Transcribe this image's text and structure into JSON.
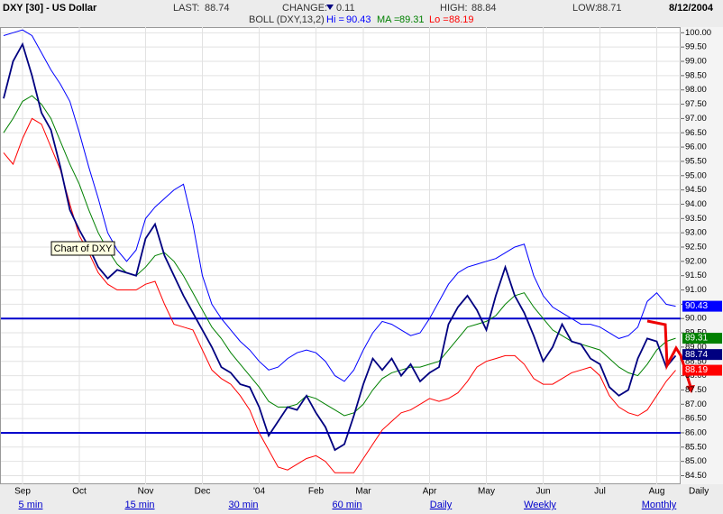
{
  "header": {
    "symbol": "DXY [30] - US Dollar",
    "last_label": "LAST:",
    "last": 88.74,
    "change_label": "CHANGE:",
    "change": 0.11,
    "high_label": "HIGH:",
    "high": 88.84,
    "low_label": "LOW:",
    "low": 88.71,
    "date": "8/12/2004",
    "boll_label": "BOLL (DXY,13,2)",
    "hi_label": "Hi =",
    "hi": 90.43,
    "ma_label": "MA =",
    "ma": 89.31,
    "lo_label": "Lo =",
    "lo": 88.19
  },
  "chart_data": {
    "type": "line",
    "categories": [
      null,
      null,
      "Sep",
      null,
      null,
      null,
      null,
      null,
      "Oct",
      null,
      null,
      null,
      null,
      null,
      null,
      "Nov",
      null,
      null,
      null,
      null,
      null,
      "Dec",
      null,
      null,
      null,
      null,
      null,
      "'04",
      null,
      null,
      null,
      null,
      null,
      "Feb",
      null,
      null,
      null,
      null,
      "Mar",
      null,
      null,
      null,
      null,
      null,
      null,
      "Apr",
      null,
      null,
      null,
      null,
      null,
      "May",
      null,
      null,
      null,
      null,
      null,
      "Jun",
      null,
      null,
      null,
      null,
      null,
      "Jul",
      null,
      null,
      null,
      null,
      null,
      "Aug",
      null,
      null
    ],
    "series": [
      {
        "name": "Price",
        "color": "#000080",
        "values": [
          97.7,
          99.0,
          99.6,
          98.5,
          97.2,
          96.6,
          95.3,
          93.8,
          93.1,
          92.5,
          91.8,
          91.4,
          91.7,
          91.6,
          91.5,
          92.8,
          93.3,
          92.2,
          91.5,
          90.8,
          90.2,
          89.6,
          89.0,
          88.3,
          88.1,
          87.7,
          87.6,
          86.9,
          85.9,
          86.4,
          86.9,
          86.8,
          87.3,
          86.7,
          86.2,
          85.4,
          85.6,
          86.6,
          87.7,
          88.6,
          88.2,
          88.6,
          88.0,
          88.4,
          87.8,
          88.1,
          88.3,
          89.8,
          90.4,
          90.8,
          90.3,
          89.6,
          90.8,
          91.8,
          90.8,
          90.2,
          89.4,
          88.5,
          89.0,
          89.8,
          89.2,
          89.1,
          88.6,
          88.4,
          87.6,
          87.3,
          87.5,
          88.6,
          89.3,
          89.2,
          88.3,
          88.7
        ]
      },
      {
        "name": "Hi",
        "color": "#0000ff",
        "values": [
          99.9,
          100.0,
          100.1,
          99.9,
          99.3,
          98.7,
          98.2,
          97.6,
          96.5,
          95.3,
          94.2,
          93.0,
          92.4,
          92.0,
          92.4,
          93.5,
          93.9,
          94.2,
          94.5,
          94.7,
          93.3,
          91.5,
          90.5,
          90.0,
          89.6,
          89.2,
          88.9,
          88.5,
          88.2,
          88.3,
          88.6,
          88.8,
          88.9,
          88.8,
          88.5,
          88.0,
          87.8,
          88.2,
          88.9,
          89.5,
          89.9,
          89.8,
          89.6,
          89.4,
          89.5,
          90.0,
          90.6,
          91.2,
          91.6,
          91.8,
          91.9,
          92.0,
          92.1,
          92.3,
          92.5,
          92.6,
          91.5,
          90.8,
          90.4,
          90.2,
          90.0,
          89.8,
          89.8,
          89.7,
          89.5,
          89.3,
          89.4,
          89.7,
          90.6,
          90.9,
          90.5,
          90.43
        ]
      },
      {
        "name": "MA",
        "color": "#008000",
        "values": [
          96.5,
          97.0,
          97.6,
          97.8,
          97.5,
          97.0,
          96.2,
          95.4,
          94.7,
          93.8,
          93.0,
          92.4,
          91.9,
          91.6,
          91.5,
          91.8,
          92.2,
          92.3,
          92.0,
          91.5,
          90.9,
          90.3,
          89.7,
          89.3,
          88.8,
          88.4,
          88.0,
          87.6,
          87.1,
          86.9,
          86.9,
          87.0,
          87.3,
          87.2,
          87.0,
          86.8,
          86.6,
          86.7,
          87.0,
          87.5,
          87.9,
          88.1,
          88.2,
          88.3,
          88.3,
          88.4,
          88.5,
          88.9,
          89.3,
          89.7,
          89.8,
          89.9,
          90.1,
          90.5,
          90.8,
          90.9,
          90.4,
          90.0,
          89.6,
          89.4,
          89.2,
          89.1,
          89.0,
          88.9,
          88.6,
          88.3,
          88.1,
          88.0,
          88.4,
          88.9,
          89.2,
          89.31
        ]
      },
      {
        "name": "Lo",
        "color": "#ff0000",
        "values": [
          95.8,
          95.4,
          96.3,
          97.0,
          96.8,
          96.0,
          95.2,
          94.0,
          92.9,
          92.3,
          91.6,
          91.2,
          91.0,
          91.0,
          91.0,
          91.2,
          91.3,
          90.5,
          89.8,
          89.7,
          89.6,
          88.9,
          88.2,
          87.9,
          87.7,
          87.3,
          86.8,
          86.0,
          85.4,
          84.8,
          84.7,
          84.9,
          85.1,
          85.2,
          85.0,
          84.6,
          84.6,
          84.6,
          85.1,
          85.6,
          86.1,
          86.4,
          86.7,
          86.8,
          87.0,
          87.2,
          87.1,
          87.2,
          87.4,
          87.8,
          88.3,
          88.5,
          88.6,
          88.7,
          88.7,
          88.4,
          87.9,
          87.7,
          87.7,
          87.9,
          88.1,
          88.2,
          88.3,
          88.0,
          87.3,
          86.9,
          86.7,
          86.6,
          86.8,
          87.3,
          87.8,
          88.19
        ]
      }
    ],
    "ylim": [
      84.2,
      100.2
    ],
    "yticks": [
      {
        "value": 84.5,
        "label": "84.50"
      },
      {
        "value": 85,
        "label": "85.00"
      },
      {
        "value": 85.5,
        "label": "85.50"
      },
      {
        "value": 86,
        "label": "86.00"
      },
      {
        "value": 86.5,
        "label": "86.50"
      },
      {
        "value": 87,
        "label": "87.00"
      },
      {
        "value": 87.5,
        "label": "87.50"
      },
      {
        "value": 88,
        "label": "88.00"
      },
      {
        "value": 88.5,
        "label": "88.50"
      },
      {
        "value": 89,
        "label": "89.00"
      },
      {
        "value": 89.5,
        "label": "89.50"
      },
      {
        "value": 90,
        "label": "90.00"
      },
      {
        "value": 90.5,
        "label": "90.50"
      },
      {
        "value": 91,
        "label": "91.00"
      },
      {
        "value": 91.5,
        "label": "91.50"
      },
      {
        "value": 92,
        "label": "92.00"
      },
      {
        "value": 92.5,
        "label": "92.50"
      },
      {
        "value": 93,
        "label": "93.00"
      },
      {
        "value": 93.5,
        "label": "93.50"
      },
      {
        "value": 94,
        "label": "94.00"
      },
      {
        "value": 94.5,
        "label": "94.50"
      },
      {
        "value": 95,
        "label": "95.00"
      },
      {
        "value": 95.5,
        "label": "95.50"
      },
      {
        "value": 96,
        "label": "96.00"
      },
      {
        "value": 96.5,
        "label": "96.50"
      },
      {
        "value": 97,
        "label": "97.00"
      },
      {
        "value": 97.5,
        "label": "97.50"
      },
      {
        "value": 98,
        "label": "98.00"
      },
      {
        "value": 98.5,
        "label": "98.50"
      },
      {
        "value": 99,
        "label": "99.00"
      },
      {
        "value": 99.5,
        "label": "99.50"
      },
      {
        "value": 100,
        "label": "100.00"
      }
    ],
    "grid": true,
    "hlines": [
      90,
      86
    ],
    "hline_color": "#0000cc",
    "annotation": "Chart of DXY",
    "period": "Daily"
  },
  "links": [
    "5 min",
    "15 min",
    "30 min",
    "60 min",
    "Daily",
    "Weekly",
    "Monthly"
  ]
}
